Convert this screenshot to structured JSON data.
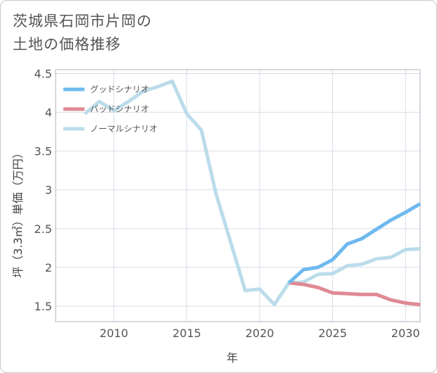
{
  "title_lines": [
    "茨城県石岡市片岡の",
    "土地の価格推移"
  ],
  "chart_data": {
    "type": "line",
    "title": "茨城県石岡市片岡の土地の価格推移",
    "xlabel": "年",
    "ylabel": "坪（3.3㎡）単価（万円）",
    "xlim": [
      2006,
      2031
    ],
    "ylim": [
      1.3,
      4.55
    ],
    "xticks": [
      2010,
      2015,
      2020,
      2025,
      2030
    ],
    "yticks": [
      1.5,
      2,
      2.5,
      3,
      3.5,
      4,
      4.5
    ],
    "ytick_labels": [
      "1.5",
      "2",
      "2.5",
      "3",
      "3.5",
      "4",
      "4.5"
    ],
    "grid": true,
    "legend_position": "top-left",
    "series": [
      {
        "name": "グッドシナリオ",
        "color": "#6db9ee",
        "x": [
          2022,
          2023,
          2024,
          2025,
          2026,
          2027,
          2028,
          2029,
          2030,
          2031
        ],
        "values": [
          1.8,
          1.97,
          2.0,
          2.1,
          2.3,
          2.37,
          2.49,
          2.61,
          2.71,
          2.82
        ]
      },
      {
        "name": "バッドシナリオ",
        "color": "#df8a93",
        "x": [
          2022,
          2023,
          2024,
          2025,
          2026,
          2027,
          2028,
          2029,
          2030,
          2031
        ],
        "values": [
          1.8,
          1.78,
          1.74,
          1.67,
          1.66,
          1.65,
          1.65,
          1.58,
          1.54,
          1.52
        ]
      },
      {
        "name": "ノーマルシナリオ",
        "color": "#bbdcea",
        "x": [
          2008,
          2009,
          2010,
          2011,
          2012,
          2013,
          2014,
          2015,
          2016,
          2017,
          2018,
          2019,
          2020,
          2021,
          2022,
          2023,
          2024,
          2025,
          2026,
          2027,
          2028,
          2029,
          2030,
          2031
        ],
        "values": [
          3.98,
          4.14,
          4.02,
          4.14,
          4.27,
          4.33,
          4.4,
          3.98,
          3.77,
          2.95,
          2.33,
          1.7,
          1.72,
          1.52,
          1.8,
          1.81,
          1.91,
          1.92,
          2.02,
          2.04,
          2.11,
          2.13,
          2.23,
          2.24
        ]
      }
    ]
  }
}
